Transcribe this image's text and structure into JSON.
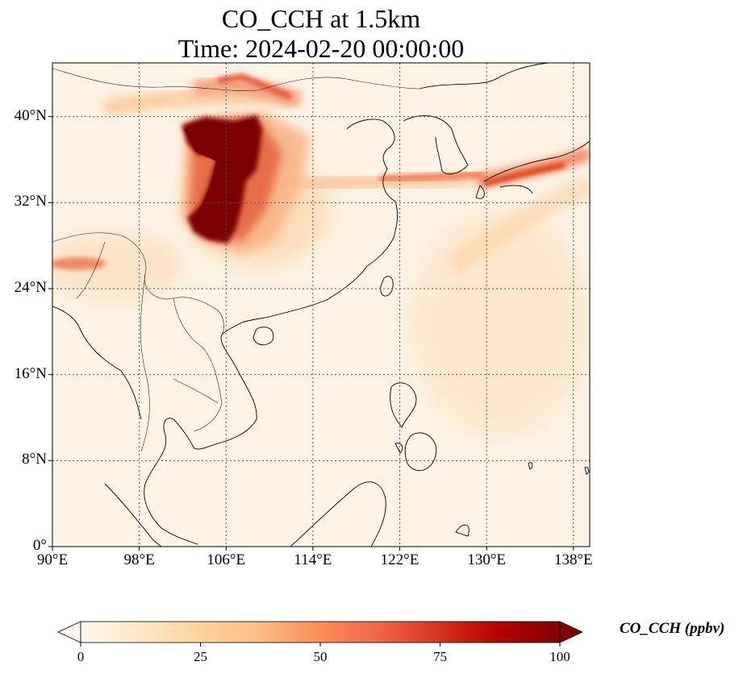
{
  "title": {
    "line1": "CO_CCH at 1.5km",
    "line2": "Time: 2024-02-20 00:00:00"
  },
  "axes": {
    "lon_ticks": [
      "90°E",
      "98°E",
      "106°E",
      "114°E",
      "122°E",
      "130°E",
      "138°E"
    ],
    "lat_ticks": [
      "0°",
      "8°N",
      "16°N",
      "24°N",
      "32°N",
      "40°N"
    ],
    "lon_range": [
      90,
      139.5
    ],
    "lat_range": [
      0,
      45
    ],
    "gridlines": "dotted"
  },
  "colorbar": {
    "label": "CO_CCH (ppbv)",
    "ticks": [
      "0",
      "25",
      "50",
      "75",
      "100"
    ],
    "range": [
      0,
      100
    ],
    "colormap": "OrRd",
    "extend": "both",
    "colors": [
      "#fff7ec",
      "#fee8c8",
      "#fdd49e",
      "#fdbb84",
      "#fc8d59",
      "#ef6548",
      "#d7301f",
      "#b30000",
      "#7f0000"
    ]
  },
  "plumes": [
    {
      "name": "central-china-core",
      "lon": 107.5,
      "lat": 33.5,
      "value": 100
    },
    {
      "name": "north-china-plume",
      "lon": 107,
      "lat": 41,
      "value": 45
    },
    {
      "name": "east-china-sea-plume",
      "lon": 126,
      "lat": 34,
      "value": 40
    },
    {
      "name": "japan-plume",
      "lon": 134,
      "lat": 35,
      "value": 45
    },
    {
      "name": "northeast-india",
      "lon": 93,
      "lat": 26.5,
      "value": 35
    }
  ]
}
